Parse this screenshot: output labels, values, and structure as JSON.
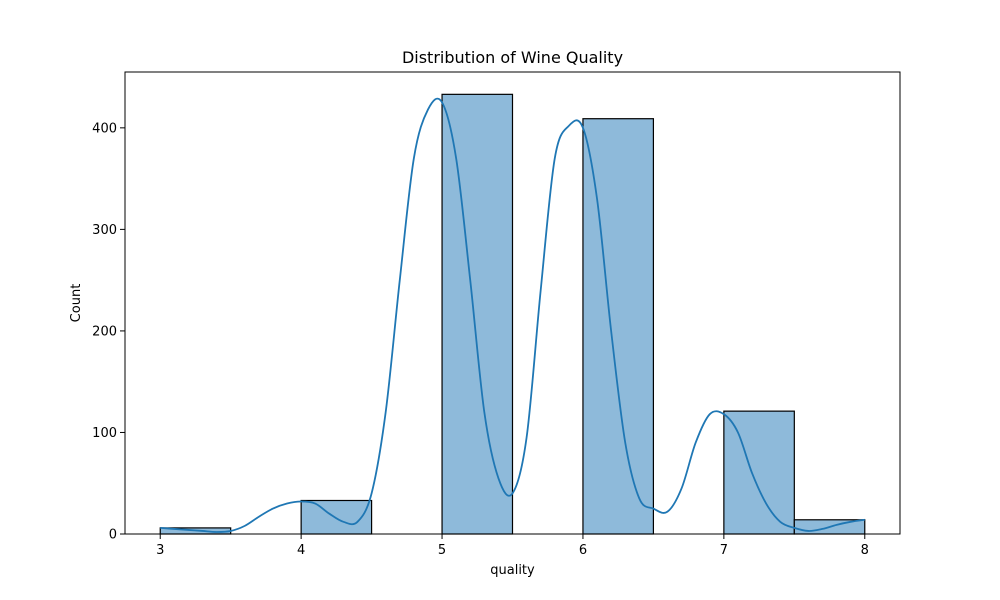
{
  "chart_data": {
    "type": "bar",
    "title": "Distribution of Wine Quality",
    "xlabel": "quality",
    "ylabel": "Count",
    "xlim": [
      2.75,
      8.25
    ],
    "ylim": [
      0,
      455
    ],
    "xticks": [
      3,
      4,
      5,
      6,
      7,
      8
    ],
    "yticks": [
      0,
      100,
      200,
      300,
      400
    ],
    "grid": false,
    "bins": [
      {
        "start": 3.0,
        "end": 3.5,
        "count": 6
      },
      {
        "start": 3.5,
        "end": 4.0,
        "count": 0
      },
      {
        "start": 4.0,
        "end": 4.5,
        "count": 33
      },
      {
        "start": 4.5,
        "end": 5.0,
        "count": 0
      },
      {
        "start": 5.0,
        "end": 5.5,
        "count": 433
      },
      {
        "start": 5.5,
        "end": 6.0,
        "count": 0
      },
      {
        "start": 6.0,
        "end": 6.5,
        "count": 409
      },
      {
        "start": 6.5,
        "end": 7.0,
        "count": 0
      },
      {
        "start": 7.0,
        "end": 7.5,
        "count": 121
      },
      {
        "start": 7.5,
        "end": 8.0,
        "count": 14
      }
    ],
    "bar_color": "#8ebada",
    "kde_color": "#1f77b4",
    "kde": {
      "x": [
        3.0,
        3.1,
        3.2,
        3.3,
        3.4,
        3.5,
        3.6,
        3.7,
        3.8,
        3.9,
        4.0,
        4.1,
        4.2,
        4.3,
        4.4,
        4.5,
        4.6,
        4.7,
        4.8,
        4.9,
        5.0,
        5.1,
        5.2,
        5.3,
        5.4,
        5.5,
        5.6,
        5.7,
        5.8,
        5.9,
        6.0,
        6.1,
        6.2,
        6.3,
        6.4,
        6.5,
        6.6,
        6.7,
        6.8,
        6.9,
        7.0,
        7.1,
        7.2,
        7.3,
        7.4,
        7.5,
        7.6,
        7.7,
        7.8,
        7.9,
        8.0
      ],
      "y": [
        6,
        5,
        4,
        3,
        2,
        3,
        8,
        17,
        25,
        30,
        32,
        30,
        20,
        12,
        12,
        40,
        120,
        250,
        370,
        418,
        425,
        370,
        250,
        120,
        55,
        40,
        95,
        240,
        370,
        402,
        400,
        330,
        200,
        90,
        35,
        25,
        22,
        45,
        90,
        118,
        118,
        100,
        60,
        30,
        12,
        6,
        3,
        5,
        9,
        12,
        14
      ]
    }
  }
}
